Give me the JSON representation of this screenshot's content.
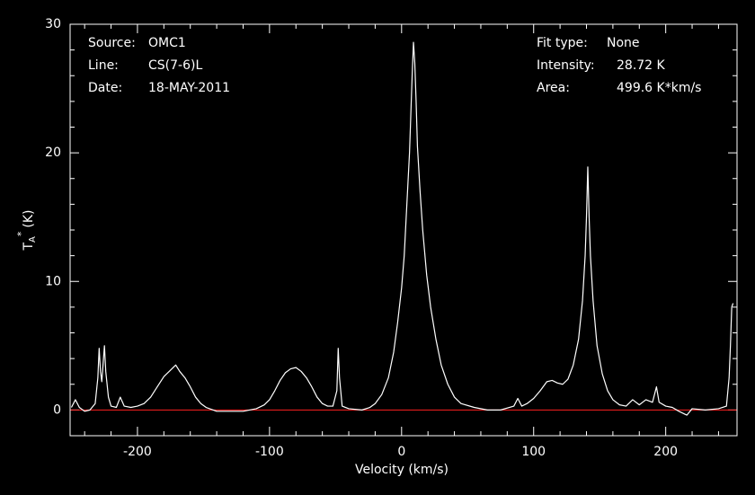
{
  "chart_data": {
    "type": "line",
    "info_left": [
      [
        "Source:",
        "OMC1"
      ],
      [
        "Line:",
        "CS(7-6)L"
      ],
      [
        "Date:",
        "18-MAY-2011"
      ]
    ],
    "info_right": [
      [
        "Fit type:",
        "None"
      ],
      [
        "Intensity:",
        "28.72 K"
      ],
      [
        "Area:",
        "499.6 K*km/s"
      ]
    ],
    "x_label": "Velocity (km/s)",
    "y_label": {
      "base": "T",
      "sub": "A",
      "sup": "*",
      "unit": "(K)"
    },
    "xlim": [
      -251,
      254
    ],
    "ylim": [
      -2,
      30
    ],
    "xticks": [
      -200,
      -100,
      0,
      100,
      200
    ],
    "yticks": [
      0,
      10,
      20,
      30
    ],
    "xminorticks": [
      -240,
      -220,
      -180,
      -160,
      -140,
      -120,
      -80,
      -60,
      -40,
      -20,
      20,
      40,
      60,
      80,
      120,
      140,
      160,
      180,
      220,
      240
    ],
    "yminorticks": [
      2,
      4,
      6,
      8,
      12,
      14,
      16,
      18,
      22,
      24,
      26,
      28
    ],
    "baseline": 0,
    "baseline_color": "#ff2020",
    "series": [
      {
        "color": "#ffffff",
        "x": [
          -250,
          -247,
          -244,
          -240,
          -236,
          -232,
          -230,
          -229,
          -228,
          -227,
          -225,
          -224,
          -222,
          -220,
          -216,
          -213,
          -210,
          -205,
          -200,
          -195,
          -190,
          -185,
          -180,
          -175,
          -171,
          -168,
          -164,
          -160,
          -156,
          -152,
          -148,
          -140,
          -130,
          -120,
          -110,
          -104,
          -100,
          -96,
          -92,
          -88,
          -84,
          -80,
          -76,
          -72,
          -68,
          -64,
          -60,
          -56,
          -52,
          -49,
          -48,
          -47,
          -45,
          -40,
          -30,
          -24,
          -20,
          -15,
          -10,
          -6,
          -3,
          0,
          2,
          4,
          6,
          7,
          8,
          9,
          10,
          11,
          12,
          14,
          16,
          19,
          22,
          26,
          30,
          35,
          40,
          45,
          55,
          65,
          75,
          85,
          88,
          91,
          95,
          100,
          105,
          110,
          114,
          118,
          122,
          126,
          130,
          134,
          137,
          139,
          140,
          141,
          142,
          143,
          145,
          148,
          152,
          156,
          160,
          165,
          170,
          175,
          180,
          185,
          190,
          193,
          195,
          200,
          205,
          210,
          216,
          220,
          230,
          240,
          246,
          248,
          249,
          250,
          251
        ],
        "values": [
          0.2,
          0.8,
          0.2,
          -0.1,
          0,
          0.5,
          2.5,
          4.8,
          3.0,
          2.2,
          5.0,
          3.0,
          1.0,
          0.3,
          0.2,
          1.0,
          0.3,
          0.2,
          0.3,
          0.5,
          1.0,
          1.8,
          2.6,
          3.1,
          3.5,
          3.0,
          2.5,
          1.8,
          1.0,
          0.5,
          0.2,
          -0.1,
          -0.1,
          -0.1,
          0.1,
          0.4,
          0.8,
          1.5,
          2.3,
          2.9,
          3.2,
          3.3,
          3.0,
          2.5,
          1.8,
          1.0,
          0.5,
          0.3,
          0.3,
          1.5,
          4.8,
          2.5,
          0.3,
          0.1,
          0.0,
          0.2,
          0.5,
          1.2,
          2.5,
          4.5,
          6.8,
          9.5,
          12,
          16,
          20,
          23,
          26,
          28.6,
          27,
          24,
          20.5,
          17,
          14,
          10.5,
          8,
          5.5,
          3.5,
          2,
          1.0,
          0.5,
          0.2,
          0.0,
          0.0,
          0.3,
          0.9,
          0.3,
          0.5,
          0.9,
          1.5,
          2.2,
          2.3,
          2.1,
          2.0,
          2.4,
          3.5,
          5.5,
          8.5,
          12,
          15,
          18.9,
          15,
          12,
          8.5,
          5.0,
          2.8,
          1.5,
          0.8,
          0.4,
          0.3,
          0.8,
          0.4,
          0.8,
          0.6,
          1.8,
          0.6,
          0.3,
          0.2,
          -0.1,
          -0.4,
          0.1,
          0,
          0.1,
          0.3,
          2.5,
          5,
          8,
          8.3
        ]
      }
    ]
  }
}
